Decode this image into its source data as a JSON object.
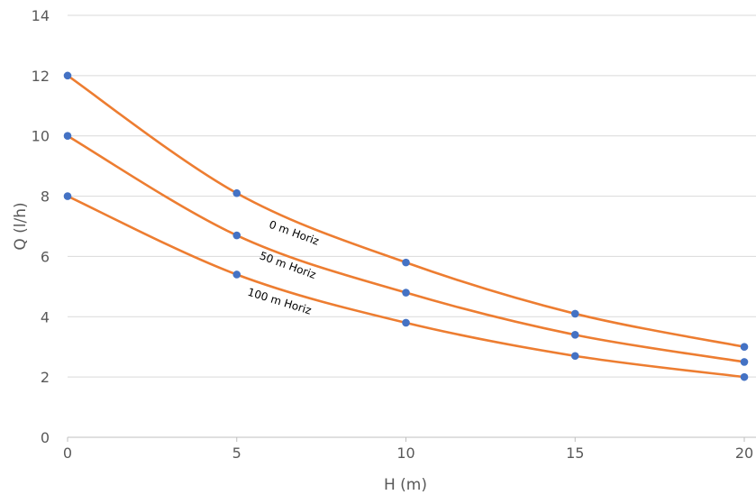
{
  "chart_data": {
    "type": "line",
    "title": "",
    "xlabel": "H (m)",
    "ylabel": "Q (l/h)",
    "xlim": [
      0,
      20
    ],
    "ylim": [
      0,
      14
    ],
    "x_ticks": [
      "0",
      "5",
      "10",
      "15",
      "20"
    ],
    "y_ticks": [
      "0",
      "2",
      "4",
      "6",
      "8",
      "10",
      "12",
      "14"
    ],
    "grid": "horizontal",
    "legend": "none",
    "line_color": "#ed7d31",
    "marker_color": "#4472c4",
    "series": [
      {
        "label": "0 m Horiz",
        "x": [
          0,
          5,
          10,
          15,
          20
        ],
        "y": [
          12,
          8.1,
          5.8,
          4.1,
          3
        ]
      },
      {
        "label": "50 m Horiz",
        "x": [
          0,
          5,
          10,
          15,
          20
        ],
        "y": [
          10,
          6.7,
          4.8,
          3.4,
          2.5
        ]
      },
      {
        "label": "100 m Horiz",
        "x": [
          0,
          5,
          10,
          15,
          20
        ],
        "y": [
          8,
          5.4,
          3.8,
          2.7,
          2
        ]
      }
    ]
  }
}
